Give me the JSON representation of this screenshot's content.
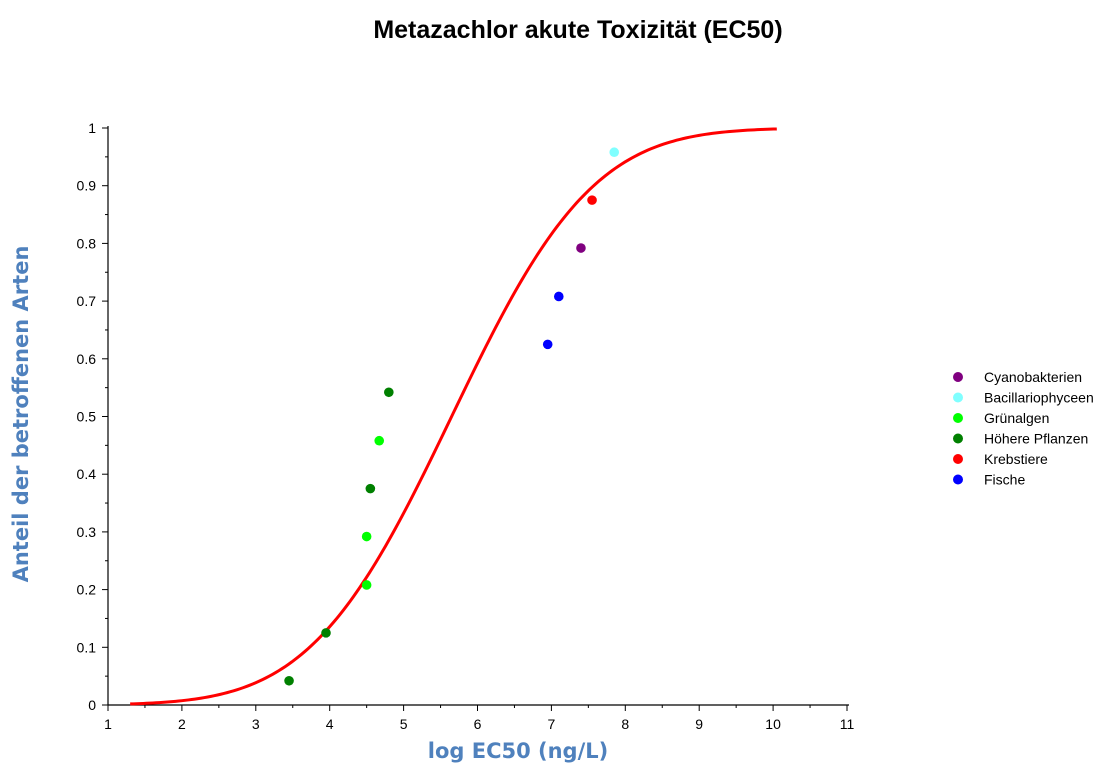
{
  "chart_data": {
    "type": "scatter",
    "title": "Metazachlor akute Toxizität (EC50)",
    "xlabel": "log EC50 (ng/L)",
    "ylabel": "Anteil der betroffenen Arten",
    "xlim": [
      1,
      11
    ],
    "ylim": [
      0,
      1
    ],
    "x_ticks": [
      "1",
      "2",
      "3",
      "4",
      "5",
      "6",
      "7",
      "8",
      "9",
      "10",
      "11"
    ],
    "y_ticks": [
      "0",
      "0.1",
      "0.2",
      "0.3",
      "0.4",
      "0.5",
      "0.6",
      "0.7",
      "0.8",
      "0.9",
      "1"
    ],
    "grid": false,
    "legend_position": "right",
    "series": [
      {
        "name": "Cyanobakterien",
        "color": "#800080",
        "points": [
          [
            7.4,
            0.792
          ]
        ]
      },
      {
        "name": "Bacillariophyceen",
        "color": "#80ffff",
        "points": [
          [
            7.85,
            0.958
          ]
        ]
      },
      {
        "name": "Grünalgen",
        "color": "#00ff00",
        "points": [
          [
            4.5,
            0.208
          ],
          [
            4.5,
            0.292
          ],
          [
            4.67,
            0.458
          ]
        ]
      },
      {
        "name": "Höhere Pflanzen",
        "color": "#008000",
        "points": [
          [
            3.45,
            0.042
          ],
          [
            3.95,
            0.125
          ],
          [
            4.55,
            0.375
          ],
          [
            4.8,
            0.542
          ]
        ]
      },
      {
        "name": "Krebstiere",
        "color": "#ff0000",
        "points": [
          [
            7.55,
            0.875
          ]
        ]
      },
      {
        "name": "Fische",
        "color": "#0000ff",
        "points": [
          [
            6.95,
            0.625
          ],
          [
            7.1,
            0.708
          ]
        ]
      }
    ],
    "fit_curve": {
      "type": "cumulative-normal",
      "color": "#ff0000",
      "x_range": [
        1.3,
        10.05
      ],
      "mean": 5.65,
      "sd": 1.5
    }
  }
}
